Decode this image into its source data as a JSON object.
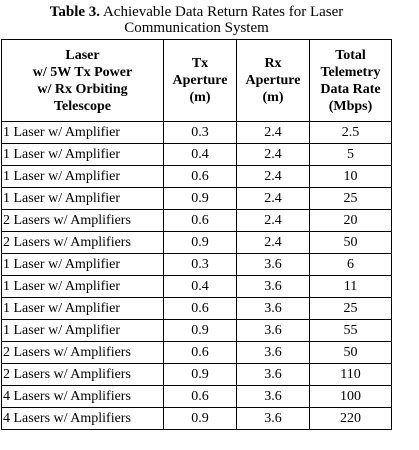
{
  "caption": {
    "label": "Table 3.",
    "line1": "Achievable Data Return Rates for Laser",
    "line2": "Communication System"
  },
  "table": {
    "headers": [
      [
        "Laser",
        "w/ 5W Tx Power",
        "w/ Rx Orbiting",
        "Telescope"
      ],
      [
        "Tx",
        "Aperture",
        "(m)"
      ],
      [
        "Rx",
        "Aperture",
        "(m)"
      ],
      [
        "Total",
        "Telemetry",
        "Data Rate",
        "(Mbps)"
      ]
    ],
    "rows": [
      [
        "1 Laser w/ Amplifier",
        "0.3",
        "2.4",
        "2.5"
      ],
      [
        "1 Laser w/ Amplifier",
        "0.4",
        "2.4",
        "5"
      ],
      [
        "1 Laser w/ Amplifier",
        "0.6",
        "2.4",
        "10"
      ],
      [
        "1 Laser w/ Amplifier",
        "0.9",
        "2.4",
        "25"
      ],
      [
        "2 Lasers w/ Amplifiers",
        "0.6",
        "2.4",
        "20"
      ],
      [
        "2 Lasers w/ Amplifiers",
        "0.9",
        "2.4",
        "50"
      ],
      [
        "1 Laser w/ Amplifier",
        "0.3",
        "3.6",
        "6"
      ],
      [
        "1 Laser w/ Amplifier",
        "0.4",
        "3.6",
        "11"
      ],
      [
        "1 Laser w/ Amplifier",
        "0.6",
        "3.6",
        "25"
      ],
      [
        "1 Laser w/ Amplifier",
        "0.9",
        "3.6",
        "55"
      ],
      [
        "2 Lasers w/ Amplifiers",
        "0.6",
        "3.6",
        "50"
      ],
      [
        "2 Lasers w/ Amplifiers",
        "0.9",
        "3.6",
        "110"
      ],
      [
        "4 Lasers w/ Amplifiers",
        "0.6",
        "3.6",
        "100"
      ],
      [
        "4 Lasers w/ Amplifiers",
        "0.9",
        "3.6",
        "220"
      ]
    ]
  }
}
